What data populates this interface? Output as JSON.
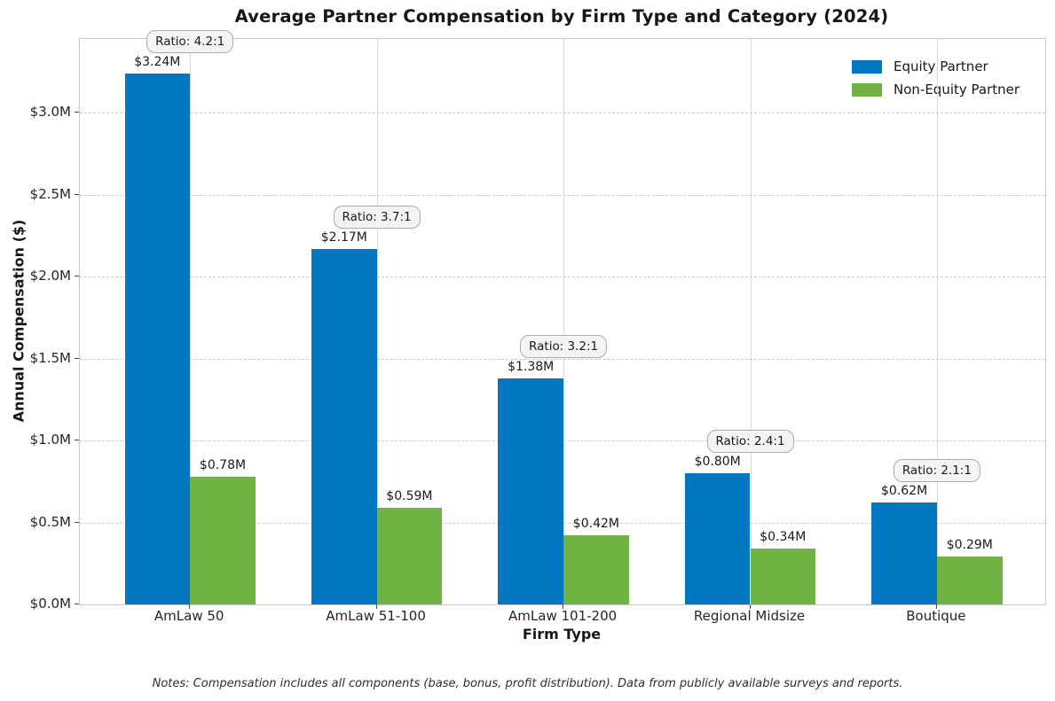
{
  "chart_data": {
    "type": "bar",
    "title": "Average Partner Compensation by Firm Type and Category (2024)",
    "xlabel": "Firm Type",
    "ylabel": "Annual Compensation ($)",
    "categories": [
      "AmLaw 50",
      "AmLaw 51-100",
      "AmLaw 101-200",
      "Regional Midsize",
      "Boutique"
    ],
    "series": [
      {
        "name": "Equity Partner",
        "color": "#0077BE",
        "values": [
          3.24,
          2.17,
          1.38,
          0.8,
          0.62
        ],
        "bar_labels": [
          "$3.24M",
          "$2.17M",
          "$1.38M",
          "$0.80M",
          "$0.62M"
        ]
      },
      {
        "name": "Non-Equity Partner",
        "color": "#70B244",
        "values": [
          0.78,
          0.59,
          0.42,
          0.34,
          0.29
        ],
        "bar_labels": [
          "$0.78M",
          "$0.59M",
          "$0.42M",
          "$0.34M",
          "$0.29M"
        ]
      }
    ],
    "ratio_annotations": [
      "Ratio: 4.2:1",
      "Ratio: 3.7:1",
      "Ratio: 3.2:1",
      "Ratio: 2.4:1",
      "Ratio: 2.1:1"
    ],
    "yticks": {
      "values": [
        0,
        0.5,
        1.0,
        1.5,
        2.0,
        2.5,
        3.0
      ],
      "labels": [
        "$0.0M",
        "$0.5M",
        "$1.0M",
        "$1.5M",
        "$2.0M",
        "$2.5M",
        "$3.0M"
      ]
    },
    "ylim": [
      0,
      3.45
    ],
    "xlim": [
      -0.59,
      4.58
    ],
    "bar_width": 0.35,
    "grid": {
      "horizontal": "dashed",
      "vertical": "solid"
    },
    "legend_position": "upper right"
  },
  "footnote": "Notes: Compensation includes all components (base, bonus, profit distribution). Data from publicly available surveys and reports."
}
